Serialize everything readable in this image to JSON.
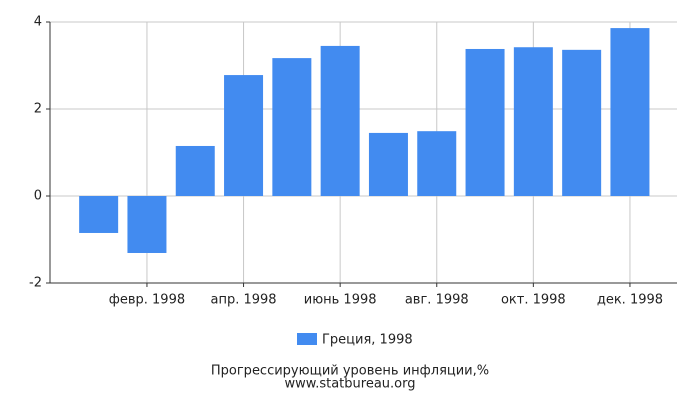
{
  "chart_data": {
    "type": "bar",
    "title": "Прогрессирующий уровень инфляции,%",
    "source": "www.statbureau.org",
    "categories": [
      null,
      "февр. 1998",
      null,
      "апр. 1998",
      null,
      "июнь 1998",
      null,
      "авг. 1998",
      null,
      "окт. 1998",
      null,
      "дек. 1998"
    ],
    "series": [
      {
        "name": "Греция, 1998",
        "color": "#428bf0",
        "values": [
          -0.85,
          -1.31,
          1.15,
          2.78,
          3.17,
          3.45,
          1.45,
          1.49,
          3.38,
          3.42,
          3.36,
          3.86
        ]
      }
    ],
    "ylim": [
      -2,
      4
    ],
    "yticks": [
      -2,
      0,
      2,
      4
    ],
    "grid": true
  }
}
